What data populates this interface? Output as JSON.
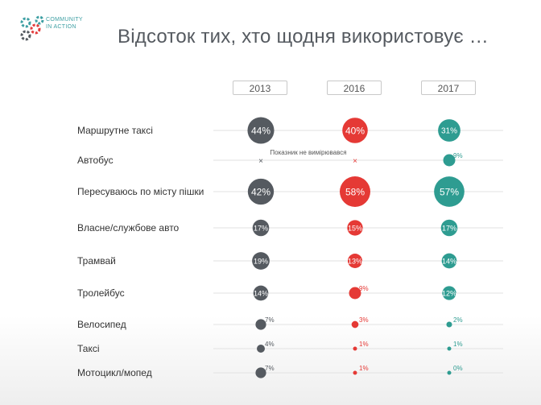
{
  "logo": {
    "line1": "COMMUNITY",
    "line2": "IN ACTION",
    "colors": [
      "#3d9fa3",
      "#e33b3b",
      "#555a60"
    ]
  },
  "title": "Відсоток тих, хто щодня використовує …",
  "chart_data": {
    "type": "bubble-table",
    "years": [
      "2013",
      "2016",
      "2017"
    ],
    "series_colors": [
      "#555a60",
      "#e53935",
      "#2e9c91"
    ],
    "note": {
      "text": "Показник не вимірювався",
      "category_index": 1
    },
    "categories": [
      "Маршрутне таксі",
      "Автобус",
      "Пересуваюсь по місту пішки",
      "Власне/службове авто",
      "Трамвай",
      "Тролейбус",
      "Велосипед",
      "Таксі",
      "Мотоцикл/мопед"
    ],
    "values": [
      [
        44,
        null,
        42,
        17,
        19,
        14,
        7,
        4,
        7
      ],
      [
        40,
        null,
        58,
        15,
        13,
        9,
        3,
        1,
        1
      ],
      [
        31,
        9,
        57,
        17,
        14,
        12,
        2,
        1,
        0
      ]
    ],
    "labels": [
      [
        "44%",
        "",
        "42%",
        "17%",
        "19%",
        "14%",
        "7%",
        "4%",
        "7%"
      ],
      [
        "40%",
        "",
        "58%",
        "15%",
        "13%",
        "9%",
        "3%",
        "1%",
        "1%"
      ],
      [
        "31%",
        "9%",
        "57%",
        "17%",
        "14%",
        "12%",
        "2%",
        "1%",
        "0%"
      ]
    ]
  }
}
